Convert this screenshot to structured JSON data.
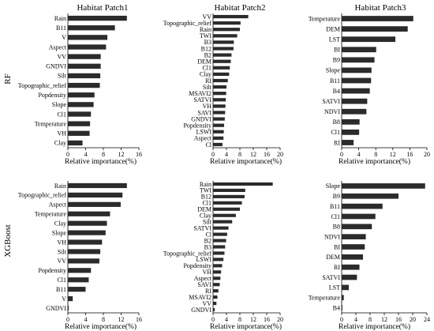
{
  "bar_color": "#2b2b2b",
  "columns": [
    "Habitat Patch1",
    "Habitat Patch2",
    "Habitat Patch3"
  ],
  "rows": [
    "RF",
    "XGBoost"
  ],
  "chart_data": [
    {
      "type": "bar",
      "orientation": "horizontal",
      "row": "RF",
      "title": "Habitat Patch1",
      "categories": [
        "Rain",
        "B11",
        "V",
        "Aspect",
        "VV",
        "GNDVI",
        "Silt",
        "Topographic_relief",
        "Popdensity",
        "Slope",
        "Cl1",
        "Temperature",
        "VH",
        "Clay"
      ],
      "values": [
        13.3,
        10.6,
        8.9,
        8.6,
        7.4,
        7.4,
        7.3,
        7.2,
        6.0,
        5.8,
        5.2,
        5.0,
        4.9,
        3.3
      ],
      "xlabel": "Relative importance(%)",
      "xlim": [
        0,
        16
      ],
      "xticks": [
        0,
        4,
        8,
        12,
        16
      ]
    },
    {
      "type": "bar",
      "orientation": "horizontal",
      "row": "RF",
      "title": "Habitat Patch2",
      "categories": [
        "VV",
        "Topographic_relief",
        "Rain",
        "TWI",
        "B3",
        "B12",
        "B2",
        "DEM",
        "Cl1",
        "Clay",
        "RI",
        "Silt",
        "MSAVI2",
        "SATVI",
        "VH",
        "SAVI",
        "GNDVI",
        "Popdensity",
        "LSWI",
        "Aspect",
        "Cl"
      ],
      "values": [
        10.5,
        8.2,
        8.0,
        7.2,
        6.2,
        6.1,
        5.5,
        5.3,
        5.0,
        4.8,
        4.4,
        4.0,
        3.9,
        3.8,
        3.7,
        3.6,
        3.5,
        3.3,
        3.2,
        3.1,
        2.8
      ],
      "xlabel": "Relative importance(%)",
      "xlim": [
        0,
        20
      ],
      "xticks": [
        0,
        4,
        8,
        12,
        16,
        20
      ]
    },
    {
      "type": "bar",
      "orientation": "horizontal",
      "row": "RF",
      "title": "Habitat Patch3",
      "categories": [
        "Temperature",
        "DEM",
        "LST",
        "BI",
        "B9",
        "Slope",
        "B11",
        "B4",
        "SATVI",
        "NDVI",
        "B8",
        "Cl1",
        "RI"
      ],
      "values": [
        16.8,
        15.5,
        12.6,
        8.1,
        7.7,
        7.0,
        6.9,
        6.6,
        6.0,
        5.8,
        4.2,
        4.1,
        2.8
      ],
      "xlabel": "Relative importance(%)",
      "xlim": [
        0,
        20
      ],
      "xticks": [
        0,
        4,
        8,
        12,
        16,
        20
      ]
    },
    {
      "type": "bar",
      "orientation": "horizontal",
      "row": "XGBoost",
      "title": "Habitat Patch1",
      "categories": [
        "Rain",
        "Topographic_relief",
        "Aspect",
        "Temperature",
        "Clay",
        "Slope",
        "VH",
        "Silt",
        "VV",
        "Popdensity",
        "Cl1",
        "B11",
        "V",
        "GNDVI"
      ],
      "values": [
        13.3,
        12.3,
        11.9,
        9.5,
        8.8,
        8.5,
        7.7,
        7.3,
        7.1,
        5.2,
        4.7,
        4.0,
        1.1,
        0.2
      ],
      "xlabel": "Relative importance(%)",
      "xlim": [
        0,
        16
      ],
      "xticks": [
        0,
        4,
        8,
        12,
        16
      ]
    },
    {
      "type": "bar",
      "orientation": "horizontal",
      "row": "XGBoost",
      "title": "Habitat Patch2",
      "categories": [
        "Rain",
        "TWI",
        "B12",
        "Cl1",
        "DEM",
        "Clay",
        "Silt",
        "SATVI",
        "Cl",
        "B2",
        "B3",
        "Topographic_relief",
        "LSWI",
        "Popdensity",
        "VH",
        "Aspect",
        "SAVI",
        "RI",
        "MSAVI2",
        "VV",
        "GNDVI"
      ],
      "values": [
        17.8,
        9.6,
        9.4,
        8.6,
        8.0,
        6.8,
        5.7,
        4.6,
        4.2,
        3.9,
        3.6,
        3.4,
        3.1,
        2.7,
        2.4,
        2.2,
        2.0,
        1.6,
        1.3,
        1.0,
        0.5
      ],
      "xlabel": "Relative importance(%)",
      "xlim": [
        0,
        20
      ],
      "xticks": [
        0,
        4,
        8,
        12,
        16,
        20
      ]
    },
    {
      "type": "bar",
      "orientation": "horizontal",
      "row": "XGBoost",
      "title": "Habitat Patch3",
      "categories": [
        "Slope",
        "B9",
        "B11",
        "Cl1",
        "B8",
        "NDVI",
        "BI",
        "DEM",
        "RI",
        "SATVI",
        "LST",
        "Temperature",
        "B4"
      ],
      "values": [
        23.5,
        16.0,
        11.5,
        9.5,
        8.5,
        6.8,
        6.5,
        6.0,
        5.0,
        4.3,
        2.0,
        0.6,
        0.2
      ],
      "xlabel": "Relative importance(%)",
      "xlim": [
        0,
        24
      ],
      "xticks": [
        0,
        4,
        8,
        12,
        16,
        20,
        24
      ]
    }
  ]
}
